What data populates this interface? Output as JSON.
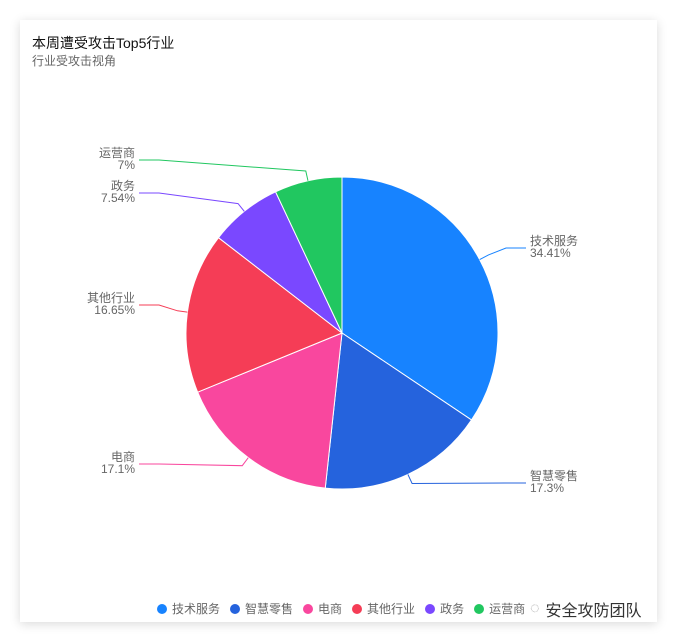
{
  "chart_data": {
    "type": "pie",
    "title": "本周遭受攻击Top5行业",
    "subtitle": "行业受攻击视角",
    "categories": [
      "技术服务",
      "智慧零售",
      "电商",
      "其他行业",
      "政务",
      "运营商"
    ],
    "values": [
      34.41,
      17.3,
      17.1,
      16.65,
      7.54,
      7
    ],
    "labels": [
      "34.41%",
      "17.3%",
      "17.1%",
      "16.65%",
      "7.54%",
      "7%"
    ],
    "colors": [
      "#1783FF",
      "#2563DD",
      "#F9479E",
      "#F53D56",
      "#7A48FF",
      "#21C760"
    ],
    "legend_position": "bottom-right"
  },
  "watermark": "安全攻防团队"
}
